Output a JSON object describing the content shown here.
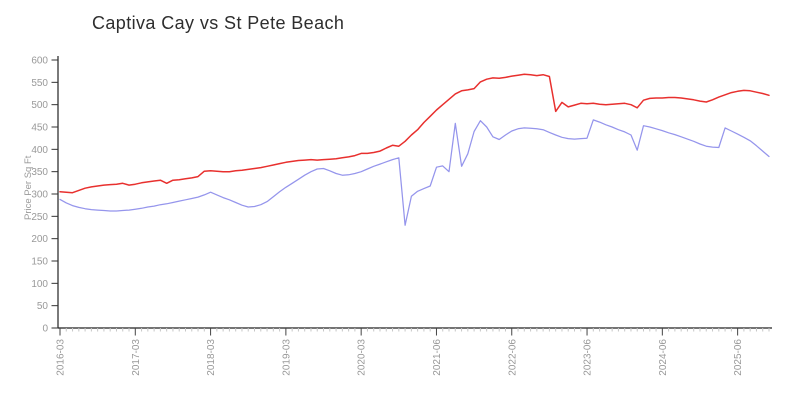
{
  "chart_data": {
    "type": "line",
    "title": "Captiva Cay vs St Pete Beach",
    "ylabel": "Price Per Sq Ft",
    "ylim": [
      0,
      600
    ],
    "ytick_step": 50,
    "grid": false,
    "legend": "none",
    "x_label_every": 12,
    "x_tick_labels_shown": [
      "2016-03",
      "2017-03",
      "2018-03",
      "2019-03",
      "2020-03",
      "2021-06",
      "2022-06",
      "2023-06",
      "2024-06",
      "2025-06"
    ],
    "x_labels": [
      "2016-03",
      "2016-04",
      "2016-05",
      "2016-06",
      "2016-07",
      "2016-08",
      "2016-09",
      "2016-10",
      "2016-11",
      "2016-12",
      "2017-01",
      "2017-02",
      "2017-03",
      "2017-04",
      "2017-05",
      "2017-06",
      "2017-07",
      "2017-08",
      "2017-09",
      "2017-10",
      "2017-11",
      "2017-12",
      "2018-01",
      "2018-02",
      "2018-03",
      "2018-04",
      "2018-05",
      "2018-06",
      "2018-07",
      "2018-08",
      "2018-09",
      "2018-10",
      "2018-11",
      "2018-12",
      "2019-01",
      "2019-02",
      "2019-03",
      "2019-04",
      "2019-05",
      "2019-06",
      "2019-07",
      "2019-08",
      "2019-09",
      "2019-10",
      "2019-11",
      "2019-12",
      "2020-01",
      "2020-02",
      "2020-03",
      "2020-07",
      "2020-08",
      "2020-09",
      "2020-10",
      "2020-11",
      "2020-12",
      "2021-01",
      "2021-02",
      "2021-03",
      "2021-04",
      "2021-05",
      "2021-06",
      "2021-07",
      "2021-08",
      "2021-09",
      "2021-10",
      "2021-11",
      "2021-12",
      "2022-01",
      "2022-02",
      "2022-03",
      "2022-04",
      "2022-05",
      "2022-06",
      "2022-07",
      "2022-08",
      "2022-09",
      "2022-10",
      "2022-11",
      "2022-12",
      "2023-01",
      "2023-02",
      "2023-03",
      "2023-04",
      "2023-05",
      "2023-06",
      "2023-07",
      "2023-08",
      "2023-09",
      "2023-10",
      "2023-11",
      "2023-12",
      "2024-01",
      "2024-02",
      "2024-03",
      "2024-04",
      "2024-05",
      "2024-06",
      "2024-07",
      "2024-08",
      "2024-09",
      "2024-10",
      "2024-11",
      "2024-12",
      "2025-01",
      "2025-02",
      "2025-03",
      "2025-04",
      "2025-05",
      "2025-06",
      "2025-07",
      "2025-08",
      "2025-09",
      "2025-10",
      "2025-11"
    ],
    "series": [
      {
        "id": "red-line",
        "color": "#e8302e",
        "values": [
          305,
          304,
          303,
          308,
          313,
          316,
          318,
          320,
          321,
          322,
          324,
          320,
          322,
          325,
          327,
          329,
          331,
          324,
          331,
          332,
          334,
          336,
          339,
          351,
          352,
          351,
          350,
          350,
          352,
          353,
          355,
          357,
          359,
          362,
          365,
          368,
          371,
          373,
          375,
          376,
          377,
          376,
          377,
          378,
          379,
          381,
          383,
          386,
          391,
          391,
          393,
          396,
          403,
          409,
          407,
          418,
          432,
          444,
          460,
          474,
          488,
          500,
          512,
          524,
          531,
          533,
          536,
          551,
          557,
          560,
          559,
          561,
          564,
          566,
          568,
          567,
          565,
          567,
          563,
          485,
          505,
          495,
          499,
          503,
          502,
          503,
          501,
          500,
          501,
          502,
          503,
          500,
          493,
          510,
          514,
          515,
          515,
          516,
          516,
          515,
          513,
          511,
          508,
          506,
          511,
          517,
          522,
          527,
          530,
          532,
          531,
          528,
          525,
          521
        ]
      },
      {
        "id": "blue-line",
        "color": "#9595ec",
        "values": [
          288,
          280,
          274,
          270,
          267,
          265,
          264,
          263,
          262,
          262,
          263,
          264,
          266,
          268,
          271,
          273,
          276,
          278,
          281,
          284,
          287,
          290,
          293,
          298,
          304,
          298,
          292,
          287,
          281,
          275,
          271,
          272,
          276,
          283,
          294,
          305,
          315,
          324,
          333,
          342,
          350,
          356,
          357,
          352,
          346,
          342,
          343,
          346,
          350,
          356,
          362,
          367,
          372,
          377,
          381,
          230,
          295,
          306,
          312,
          318,
          360,
          363,
          350,
          458,
          362,
          390,
          440,
          464,
          450,
          428,
          422,
          432,
          441,
          446,
          448,
          447,
          446,
          444,
          438,
          432,
          427,
          424,
          423,
          424,
          425,
          466,
          461,
          455,
          450,
          444,
          439,
          432,
          398,
          453,
          450,
          446,
          442,
          437,
          433,
          428,
          423,
          418,
          412,
          407,
          405,
          404,
          448,
          441,
          434,
          427,
          419,
          408,
          396,
          384
        ]
      }
    ]
  }
}
